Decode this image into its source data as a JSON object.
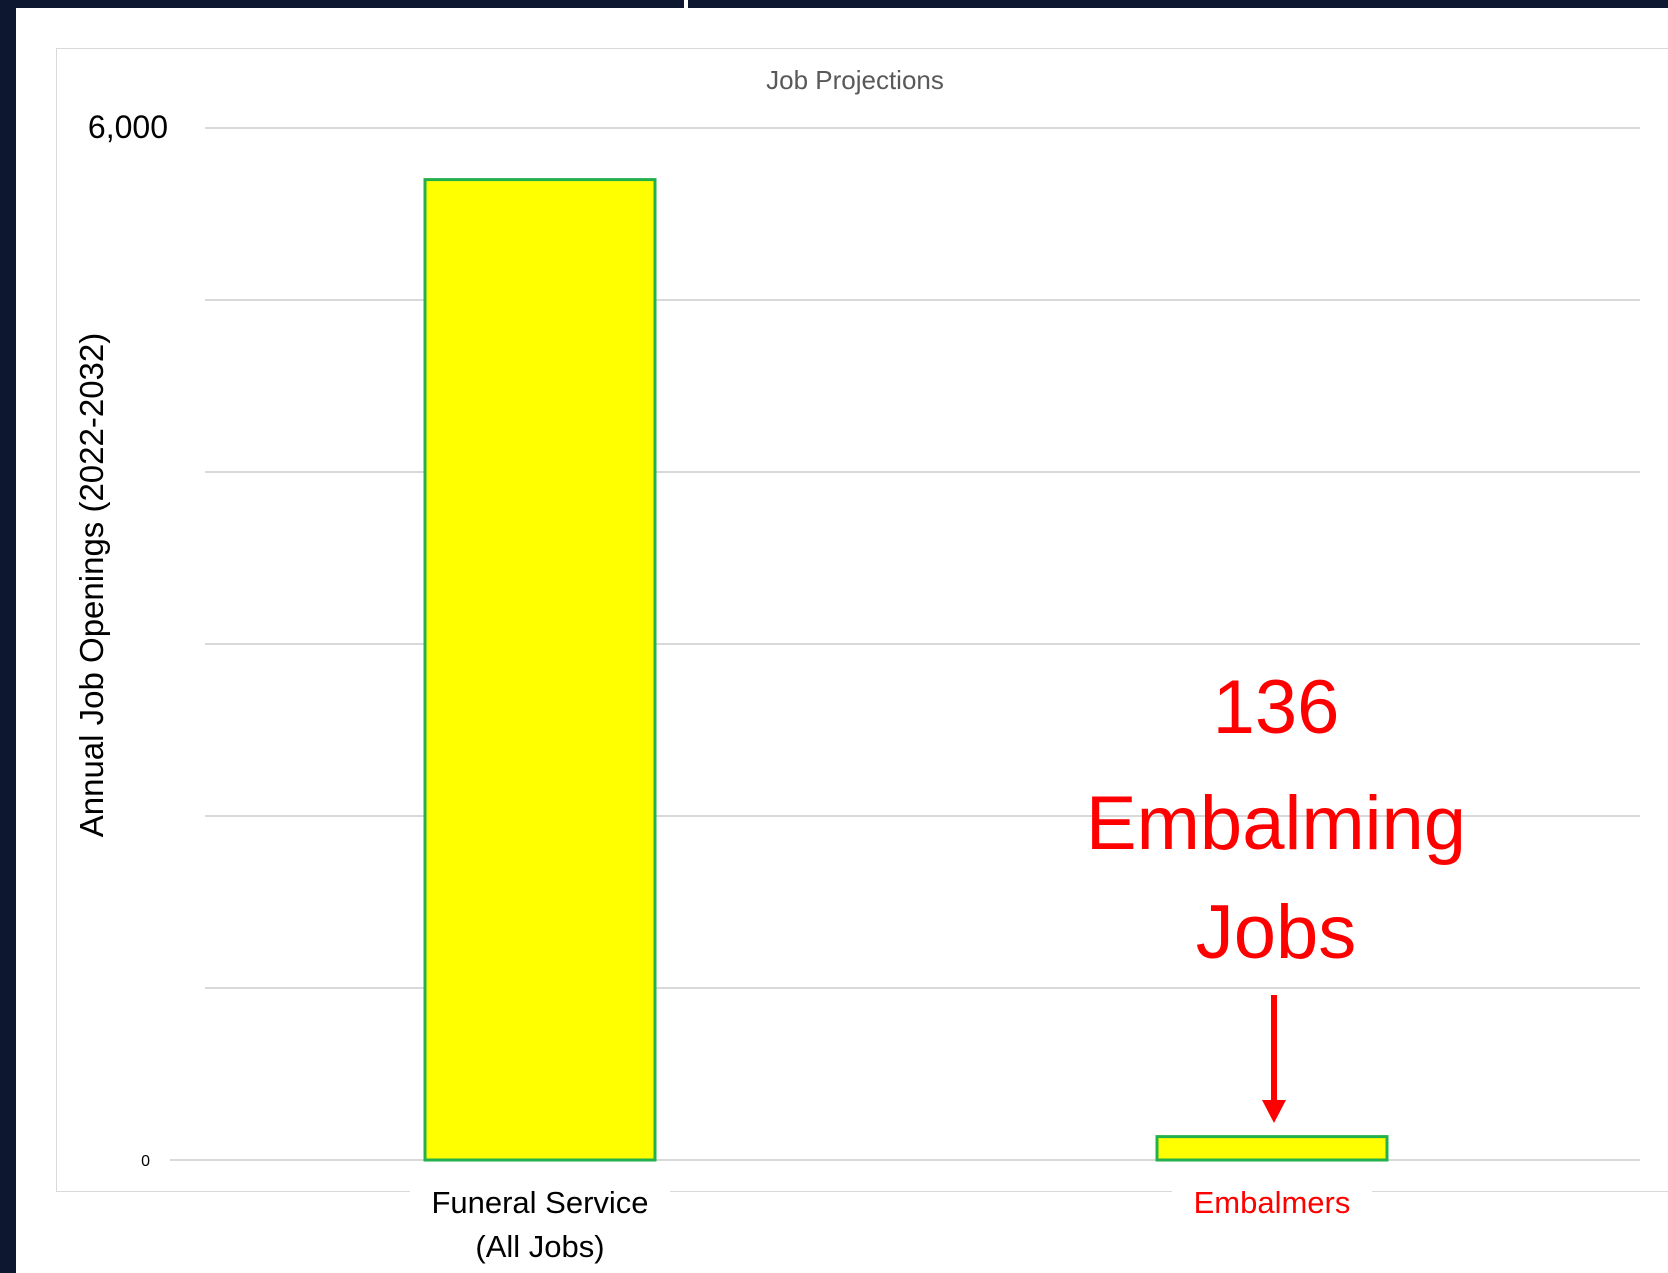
{
  "chart_data": {
    "type": "bar",
    "title": "Job Projections",
    "ylabel": "Annual Job Openings (2022-2032)",
    "xlabel": "",
    "categories": [
      "Funeral Service\n(All Jobs)",
      "Embalmers"
    ],
    "values": [
      5700,
      136
    ],
    "ylim": [
      0,
      6000
    ],
    "ytick_labels": [
      {
        "value": 0,
        "label": "0"
      },
      {
        "value": 6000,
        "label": "6,000"
      }
    ],
    "gridlines": [
      0,
      1000,
      2000,
      3000,
      4000,
      5000,
      6000
    ],
    "grid": true,
    "legend": "none",
    "annotation": {
      "lines": [
        "136",
        "Embalming",
        "Jobs"
      ],
      "target_category": "Embalmers",
      "color": "#ff0000"
    },
    "colors": {
      "bar_fill": "#ffff00",
      "bar_border": "#22b14c",
      "grid": "#d9d9d9",
      "highlight_label": "#ff0000",
      "axis_text": "#000000",
      "title_text": "#595959"
    }
  }
}
